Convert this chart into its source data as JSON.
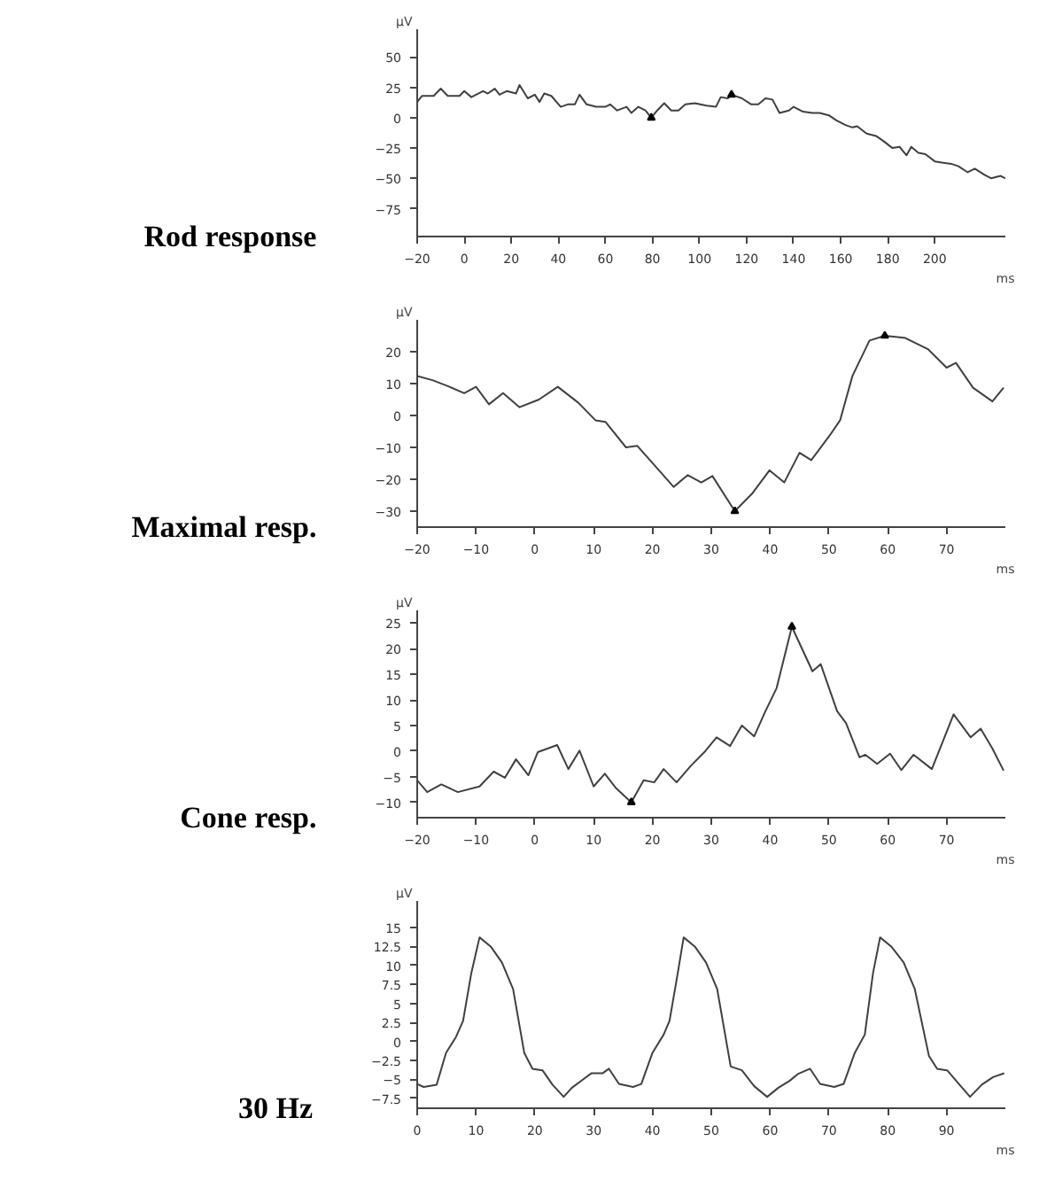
{
  "chart_data": [
    {
      "type": "line",
      "title": "Rod response",
      "xlabel": "ms",
      "ylabel": "µV",
      "xlim": [
        -20,
        230
      ],
      "ylim": [
        -98,
        73
      ],
      "xticks": [
        -20,
        0,
        20,
        40,
        60,
        80,
        100,
        120,
        140,
        160,
        180,
        200
      ],
      "yticks": [
        -75,
        -50,
        -25,
        0,
        25,
        50
      ],
      "series": [
        {
          "color": "#404040",
          "x": [
            -20,
            -18,
            -13,
            -10,
            -7,
            -2,
            0,
            3,
            8,
            10,
            13,
            15,
            18,
            22,
            23.5,
            27,
            30,
            32,
            34,
            37,
            41,
            44,
            47,
            49,
            52,
            56,
            60,
            62,
            65,
            69,
            71,
            74,
            77,
            79.5,
            82,
            85,
            88,
            91,
            94,
            98,
            103,
            107,
            109,
            112,
            113.6,
            118,
            122,
            125,
            128,
            131,
            134,
            138,
            140,
            144,
            148,
            151,
            155,
            158,
            162,
            165,
            167,
            171,
            175,
            178,
            182,
            185,
            188,
            190,
            193,
            196,
            200,
            203,
            207,
            210,
            214,
            217,
            221,
            224,
            228,
            230
          ],
          "values": [
            13,
            18,
            18,
            24,
            18,
            18,
            22,
            17,
            22,
            20,
            24,
            19,
            22,
            20,
            27,
            16,
            19,
            13,
            20,
            18,
            9,
            11,
            11,
            19,
            11,
            9,
            9,
            11,
            6,
            9,
            4,
            9,
            6,
            0,
            6,
            12,
            6,
            6,
            11,
            12,
            10,
            9,
            17,
            16,
            19,
            16,
            11,
            11,
            16,
            15,
            4,
            6,
            9,
            5,
            4,
            4,
            2,
            -2,
            -6,
            -8,
            -7,
            -13,
            -15,
            -19,
            -25,
            -24,
            -31,
            -24,
            -29,
            -30,
            -36,
            -37,
            -38,
            -40,
            -45,
            -42,
            -47,
            -50,
            -48,
            -50
          ]
        },
        {
          "type": "scatter",
          "marker": "triangle",
          "color": "#000000",
          "x": [
            79.5,
            113.6
          ],
          "values": [
            0,
            19
          ]
        }
      ]
    },
    {
      "type": "line",
      "title": "Maximal resp.",
      "xlabel": "ms",
      "ylabel": "µV",
      "xlim": [
        -20,
        80
      ],
      "ylim": [
        -35,
        30
      ],
      "xticks": [
        -20,
        -10,
        0,
        10,
        20,
        30,
        40,
        50,
        60,
        70
      ],
      "yticks": [
        -30,
        -20,
        -10,
        0,
        10,
        20
      ],
      "series": [
        {
          "color": "#404040",
          "x": [
            -20,
            -17.3,
            -14.5,
            -12,
            -10,
            -7.8,
            -5.4,
            -2.6,
            0.7,
            3.9,
            7.4,
            10.3,
            12,
            15.5,
            17.4,
            19.8,
            23.6,
            26,
            28.3,
            30.2,
            34,
            36.9,
            39.9,
            42.4,
            45,
            47,
            50.2,
            51.9,
            54,
            56.9,
            59.5,
            63,
            66.9,
            70,
            71.6,
            74.5,
            77.8,
            79.7
          ],
          "values": [
            12.4,
            11,
            9,
            7,
            9,
            3.5,
            7,
            2.6,
            5,
            9,
            4,
            -1.5,
            -2,
            -10,
            -9.5,
            -14.5,
            -22.4,
            -18.7,
            -21,
            -19,
            -30,
            -24.6,
            -17.2,
            -21,
            -11.7,
            -14,
            -6.1,
            -1.5,
            12.4,
            23.5,
            25,
            24.3,
            20.7,
            15,
            16.5,
            8.7,
            4.4,
            8.7
          ]
        },
        {
          "type": "scatter",
          "marker": "triangle",
          "color": "#000000",
          "x": [
            34,
            59.5
          ],
          "values": [
            -30,
            25
          ]
        }
      ]
    },
    {
      "type": "line",
      "title": "Cone resp.",
      "xlabel": "ms",
      "ylabel": "µV",
      "xlim": [
        -20,
        80
      ],
      "ylim": [
        -13,
        27.5
      ],
      "xticks": [
        -20,
        -10,
        0,
        10,
        20,
        30,
        40,
        50,
        60,
        70
      ],
      "yticks": [
        -10,
        -5,
        0,
        5,
        10,
        15,
        20,
        25
      ],
      "series": [
        {
          "color": "#404040",
          "x": [
            -20,
            -18.3,
            -15.9,
            -13.1,
            -9.4,
            -7,
            -5.1,
            -3.2,
            -1.1,
            0.5,
            3.8,
            5.7,
            7.6,
            10,
            11.9,
            13.7,
            16.4,
            18.5,
            20.3,
            21.9,
            24.1,
            26.5,
            28.9,
            30.9,
            33.2,
            35.2,
            37.3,
            39.2,
            41.1,
            43.7,
            47.2,
            48.6,
            51.4,
            52.9,
            55.2,
            56.2,
            58.2,
            60.4,
            62.3,
            64.4,
            67.5,
            71.2,
            74.1,
            75.8,
            77.8,
            79.7
          ],
          "values": [
            -5.7,
            -8,
            -6.5,
            -8,
            -6.9,
            -4,
            -5.2,
            -1.6,
            -4.7,
            -0.2,
            1.2,
            -3.5,
            0.1,
            -6.9,
            -4.4,
            -7.1,
            -10,
            -5.7,
            -6.1,
            -3.5,
            -6.1,
            -2.9,
            -0.1,
            2.7,
            1,
            5,
            2.9,
            7.8,
            12.3,
            24.3,
            15.6,
            17,
            7.8,
            5.5,
            -1.2,
            -0.7,
            -2.5,
            -0.5,
            -3.7,
            -0.7,
            -3.5,
            7.2,
            2.7,
            4.4,
            0.5,
            -3.8
          ]
        },
        {
          "type": "scatter",
          "marker": "triangle",
          "color": "#000000",
          "x": [
            16.4,
            43.7
          ],
          "values": [
            -10,
            24.3
          ]
        }
      ]
    },
    {
      "type": "line",
      "title": "30 Hz",
      "xlabel": "ms",
      "ylabel": "µV",
      "xlim": [
        0,
        100
      ],
      "ylim": [
        -8.8,
        18.5
      ],
      "xticks": [
        0,
        10,
        20,
        30,
        40,
        50,
        60,
        70,
        80,
        90
      ],
      "yticks": [
        -7.5,
        -5,
        -2.5,
        0,
        2.5,
        5,
        7.5,
        10,
        12.5,
        15
      ],
      "series": [
        {
          "color": "#404040",
          "x": [
            0,
            1.1,
            3.3,
            4.9,
            6.6,
            7.8,
            9.2,
            10.6,
            12.5,
            14.4,
            16.3,
            18.2,
            19.6,
            21.3,
            23,
            24.9,
            26.3,
            28.2,
            29.6,
            31.5,
            32.6,
            34.3,
            36.7,
            38.1,
            40,
            41.9,
            42.9,
            44.3,
            45.3,
            47.2,
            49.1,
            51,
            53.3,
            55.2,
            57.3,
            59.5,
            61.4,
            63.3,
            64.7,
            66.8,
            68.5,
            70.9,
            72.5,
            74.4,
            76.1,
            77.5,
            78.7,
            80.6,
            82.7,
            84.6,
            87,
            88.4,
            90.1,
            92.2,
            94,
            96,
            97.9,
            99.8
          ],
          "values": [
            -5.6,
            -6,
            -5.7,
            -1.5,
            0.6,
            2.7,
            9,
            13.7,
            12.5,
            10.4,
            6.9,
            -1.5,
            -3.6,
            -3.8,
            -5.7,
            -7.3,
            -6.1,
            -5,
            -4.2,
            -4.2,
            -3.6,
            -5.6,
            -6,
            -5.6,
            -1.5,
            0.9,
            2.7,
            9,
            13.7,
            12.5,
            10.4,
            6.9,
            -3.3,
            -3.8,
            -5.9,
            -7.3,
            -6.1,
            -5.2,
            -4.3,
            -3.6,
            -5.6,
            -6,
            -5.6,
            -1.5,
            0.9,
            9,
            13.7,
            12.5,
            10.4,
            6.9,
            -1.9,
            -3.6,
            -3.8,
            -5.7,
            -7.3,
            -5.7,
            -4.7,
            -4.2
          ]
        }
      ]
    }
  ]
}
